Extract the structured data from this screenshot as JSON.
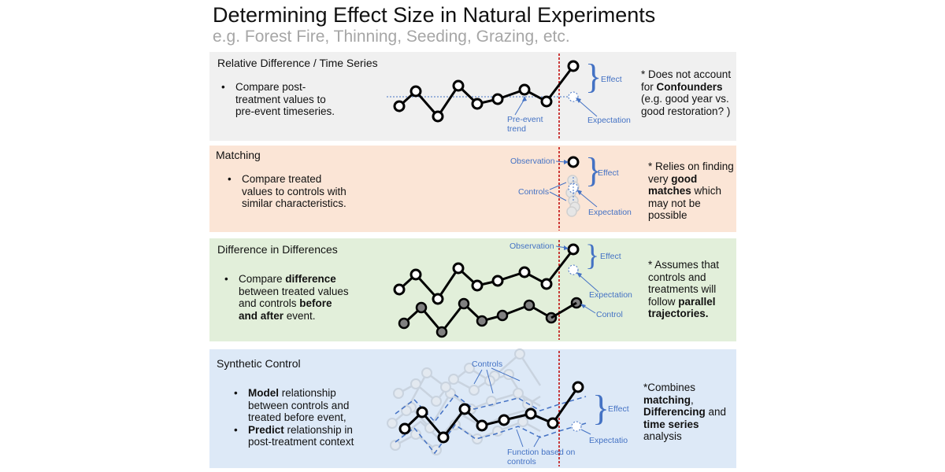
{
  "header": {
    "title": "Determining Effect Size in Natural Experiments",
    "subtitle": "e.g. Forest Fire, Thinning, Seeding, Grazing, etc."
  },
  "colors": {
    "panel1_bg": "#f0f0f0",
    "panel2_bg": "#fbe5d6",
    "panel3_bg": "#e2efda",
    "panel4_bg": "#dde9f7",
    "event_line": "#c00000",
    "annotation": "#4472c4"
  },
  "panels": [
    {
      "title": "Relative Difference / Time Series",
      "bullets": [
        {
          "parts": [
            {
              "t": "Compare post-treatment values to pre-event timeseries.",
              "b": false
            }
          ]
        }
      ],
      "note": [
        {
          "t": "* Does not account for ",
          "b": false
        },
        {
          "t": "Confounders",
          "b": true
        },
        {
          "t": " (e.g. good year vs. good restoration? )",
          "b": false
        }
      ],
      "labels": {
        "effect": "Effect",
        "expectation": "Expectation",
        "trend": "Pre-event trend"
      }
    },
    {
      "title": "Matching",
      "bullets": [
        {
          "parts": [
            {
              "t": "Compare treated values to controls with similar characteristics.",
              "b": false
            }
          ]
        }
      ],
      "note": [
        {
          "t": "* Relies on finding very ",
          "b": false
        },
        {
          "t": "good matches",
          "b": true
        },
        {
          "t": " which may not be possible",
          "b": false
        }
      ],
      "labels": {
        "observation": "Observation",
        "effect": "Effect",
        "controls": "Controls",
        "expectation": "Expectation"
      }
    },
    {
      "title": "Difference in Differences",
      "bullets": [
        {
          "parts": [
            {
              "t": "Compare ",
              "b": false
            },
            {
              "t": "difference",
              "b": true
            },
            {
              "t": " between treated values and controls ",
              "b": false
            },
            {
              "t": "before and after",
              "b": true
            },
            {
              "t": " event.",
              "b": false
            }
          ]
        }
      ],
      "note": [
        {
          "t": "* Assumes that controls and treatments will follow ",
          "b": false
        },
        {
          "t": "parallel trajectories.",
          "b": true
        }
      ],
      "labels": {
        "observation": "Observation",
        "effect": "Effect",
        "expectation": "Expectation",
        "control": "Control"
      }
    },
    {
      "title": "Synthetic Control",
      "bullets": [
        {
          "parts": [
            {
              "t": "Model",
              "b": true
            },
            {
              "t": " relationship between controls and treated before event,",
              "b": false
            }
          ]
        },
        {
          "parts": [
            {
              "t": "Predict",
              "b": true
            },
            {
              "t": " relationship in post-treatment context",
              "b": false
            }
          ]
        }
      ],
      "note": [
        {
          "t": "*Combines ",
          "b": false
        },
        {
          "t": "matching",
          "b": true
        },
        {
          "t": ", ",
          "b": false
        },
        {
          "t": "Differencing",
          "b": true
        },
        {
          "t": " and ",
          "b": false
        },
        {
          "t": "time series",
          "b": true
        },
        {
          "t": " analysis",
          "b": false
        }
      ],
      "labels": {
        "controls": "Controls",
        "effect": "Effect",
        "expectation": "Expectatio",
        "function": "Function based on controls"
      }
    }
  ]
}
